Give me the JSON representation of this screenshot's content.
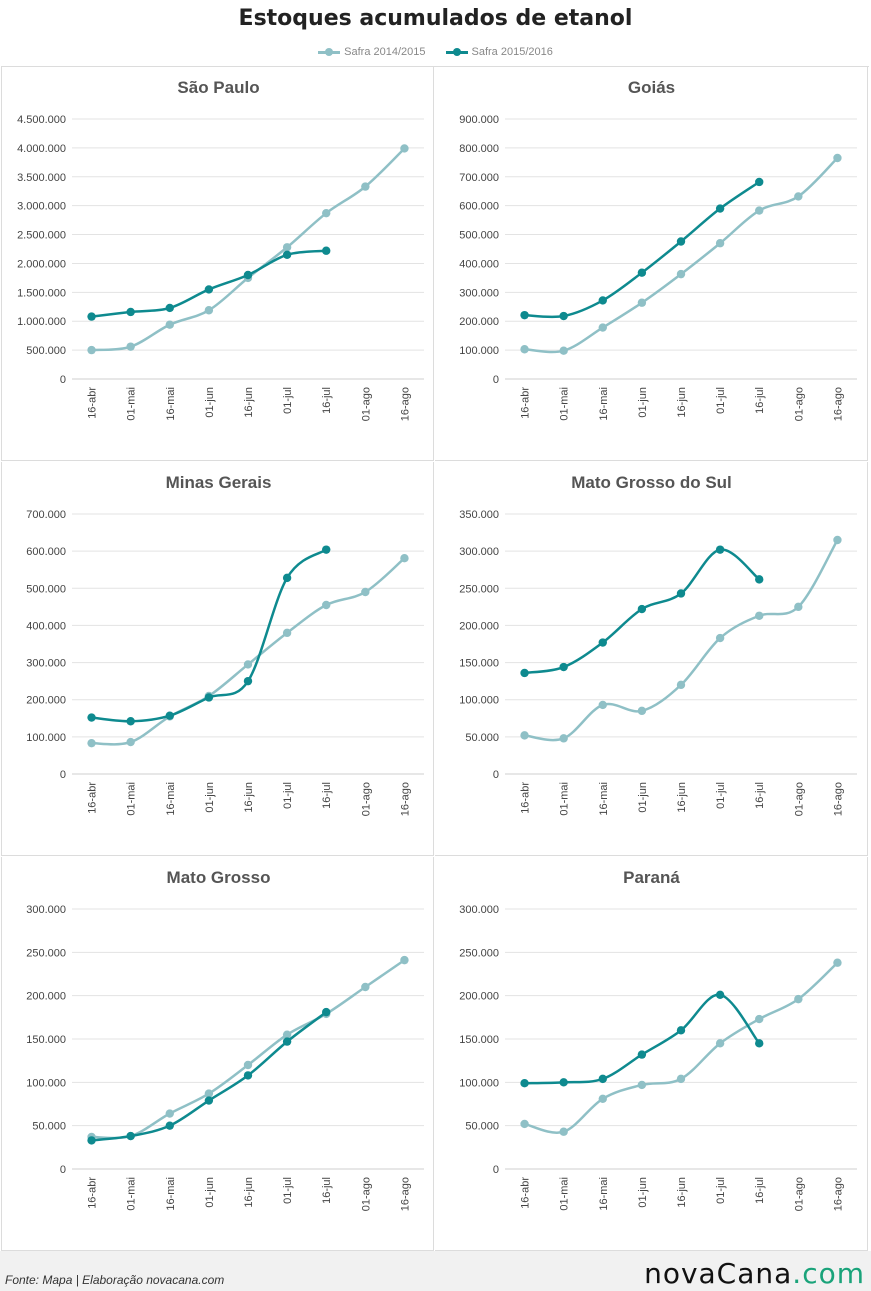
{
  "title": "Estoques acumulados de etanol",
  "legend": [
    {
      "label": "Safra 2014/2015",
      "color": "#8fc0c6"
    },
    {
      "label": "Safra 2015/2016",
      "color": "#0e8a8f"
    }
  ],
  "footer": {
    "source": "Fonte: Mapa | Elaboração novacana.com",
    "logo_main": "novaCana",
    "logo_accent": ".com"
  },
  "chart_data": [
    {
      "type": "line",
      "title": "São Paulo",
      "categories": [
        "16-abr",
        "01-mai",
        "16-mai",
        "01-jun",
        "16-jun",
        "01-jul",
        "16-jul",
        "01-ago",
        "16-ago"
      ],
      "ylim": [
        0,
        4500000
      ],
      "yticks": [
        "0",
        "500.000",
        "1.000.000",
        "1.500.000",
        "2.000.000",
        "2.500.000",
        "3.000.000",
        "3.500.000",
        "4.000.000",
        "4.500.000"
      ],
      "series": [
        {
          "name": "Safra 2014/2015",
          "values": [
            500000,
            560000,
            940000,
            1190000,
            1750000,
            2280000,
            2870000,
            3330000,
            3990000
          ]
        },
        {
          "name": "Safra 2015/2016",
          "values": [
            1080000,
            1160000,
            1230000,
            1550000,
            1800000,
            2150000,
            2220000,
            null,
            null
          ]
        }
      ]
    },
    {
      "type": "line",
      "title": "Goiás",
      "categories": [
        "16-abr",
        "01-mai",
        "16-mai",
        "01-jun",
        "16-jun",
        "01-jul",
        "16-jul",
        "01-ago",
        "16-ago"
      ],
      "ylim": [
        0,
        900000
      ],
      "yticks": [
        "0",
        "100.000",
        "200.000",
        "300.000",
        "400.000",
        "500.000",
        "600.000",
        "700.000",
        "800.000",
        "900.000"
      ],
      "series": [
        {
          "name": "Safra 2014/2015",
          "values": [
            103000,
            98000,
            178000,
            264000,
            363000,
            470000,
            583000,
            632000,
            765000
          ]
        },
        {
          "name": "Safra 2015/2016",
          "values": [
            221000,
            218000,
            272000,
            368000,
            476000,
            590000,
            682000,
            null,
            null
          ]
        }
      ]
    },
    {
      "type": "line",
      "title": "Minas Gerais",
      "categories": [
        "16-abr",
        "01-mai",
        "16-mai",
        "01-jun",
        "16-jun",
        "01-jul",
        "16-jul",
        "01-ago",
        "16-ago"
      ],
      "ylim": [
        0,
        700000
      ],
      "yticks": [
        "0",
        "100.000",
        "200.000",
        "300.000",
        "400.000",
        "500.000",
        "600.000",
        "700.000"
      ],
      "series": [
        {
          "name": "Safra 2014/2015",
          "values": [
            83000,
            86000,
            155000,
            210000,
            295000,
            380000,
            455000,
            490000,
            581000
          ]
        },
        {
          "name": "Safra 2015/2016",
          "values": [
            152000,
            142000,
            157000,
            206000,
            250000,
            528000,
            604000,
            null,
            null
          ]
        }
      ]
    },
    {
      "type": "line",
      "title": "Mato Grosso do Sul",
      "categories": [
        "16-abr",
        "01-mai",
        "16-mai",
        "01-jun",
        "16-jun",
        "01-jul",
        "16-jul",
        "01-ago",
        "16-ago"
      ],
      "ylim": [
        0,
        350000
      ],
      "yticks": [
        "0",
        "50.000",
        "100.000",
        "150.000",
        "200.000",
        "250.000",
        "300.000",
        "350.000"
      ],
      "series": [
        {
          "name": "Safra 2014/2015",
          "values": [
            52000,
            48000,
            93000,
            85000,
            120000,
            183000,
            213000,
            225000,
            315000
          ]
        },
        {
          "name": "Safra 2015/2016",
          "values": [
            136000,
            144000,
            177000,
            222000,
            243000,
            302000,
            262000,
            null,
            null
          ]
        }
      ]
    },
    {
      "type": "line",
      "title": "Mato Grosso",
      "categories": [
        "16-abr",
        "01-mai",
        "16-mai",
        "01-jun",
        "16-jun",
        "01-jul",
        "16-jul",
        "01-ago",
        "16-ago"
      ],
      "ylim": [
        0,
        300000
      ],
      "yticks": [
        "0",
        "50.000",
        "100.000",
        "150.000",
        "200.000",
        "250.000",
        "300.000"
      ],
      "series": [
        {
          "name": "Safra 2014/2015",
          "values": [
            37000,
            38000,
            64000,
            87000,
            120000,
            155000,
            179000,
            210000,
            241000
          ]
        },
        {
          "name": "Safra 2015/2016",
          "values": [
            33000,
            38000,
            50000,
            79000,
            108000,
            147000,
            181000,
            null,
            null
          ]
        }
      ]
    },
    {
      "type": "line",
      "title": "Paraná",
      "categories": [
        "16-abr",
        "01-mai",
        "16-mai",
        "01-jun",
        "16-jun",
        "01-jul",
        "16-jul",
        "01-ago",
        "16-ago"
      ],
      "ylim": [
        0,
        300000
      ],
      "yticks": [
        "0",
        "50.000",
        "100.000",
        "150.000",
        "200.000",
        "250.000",
        "300.000"
      ],
      "series": [
        {
          "name": "Safra 2014/2015",
          "values": [
            52000,
            43000,
            81000,
            97000,
            104000,
            145000,
            173000,
            196000,
            238000
          ]
        },
        {
          "name": "Safra 2015/2016",
          "values": [
            99000,
            100000,
            104000,
            132000,
            160000,
            201000,
            145000,
            null,
            null
          ]
        }
      ]
    }
  ]
}
